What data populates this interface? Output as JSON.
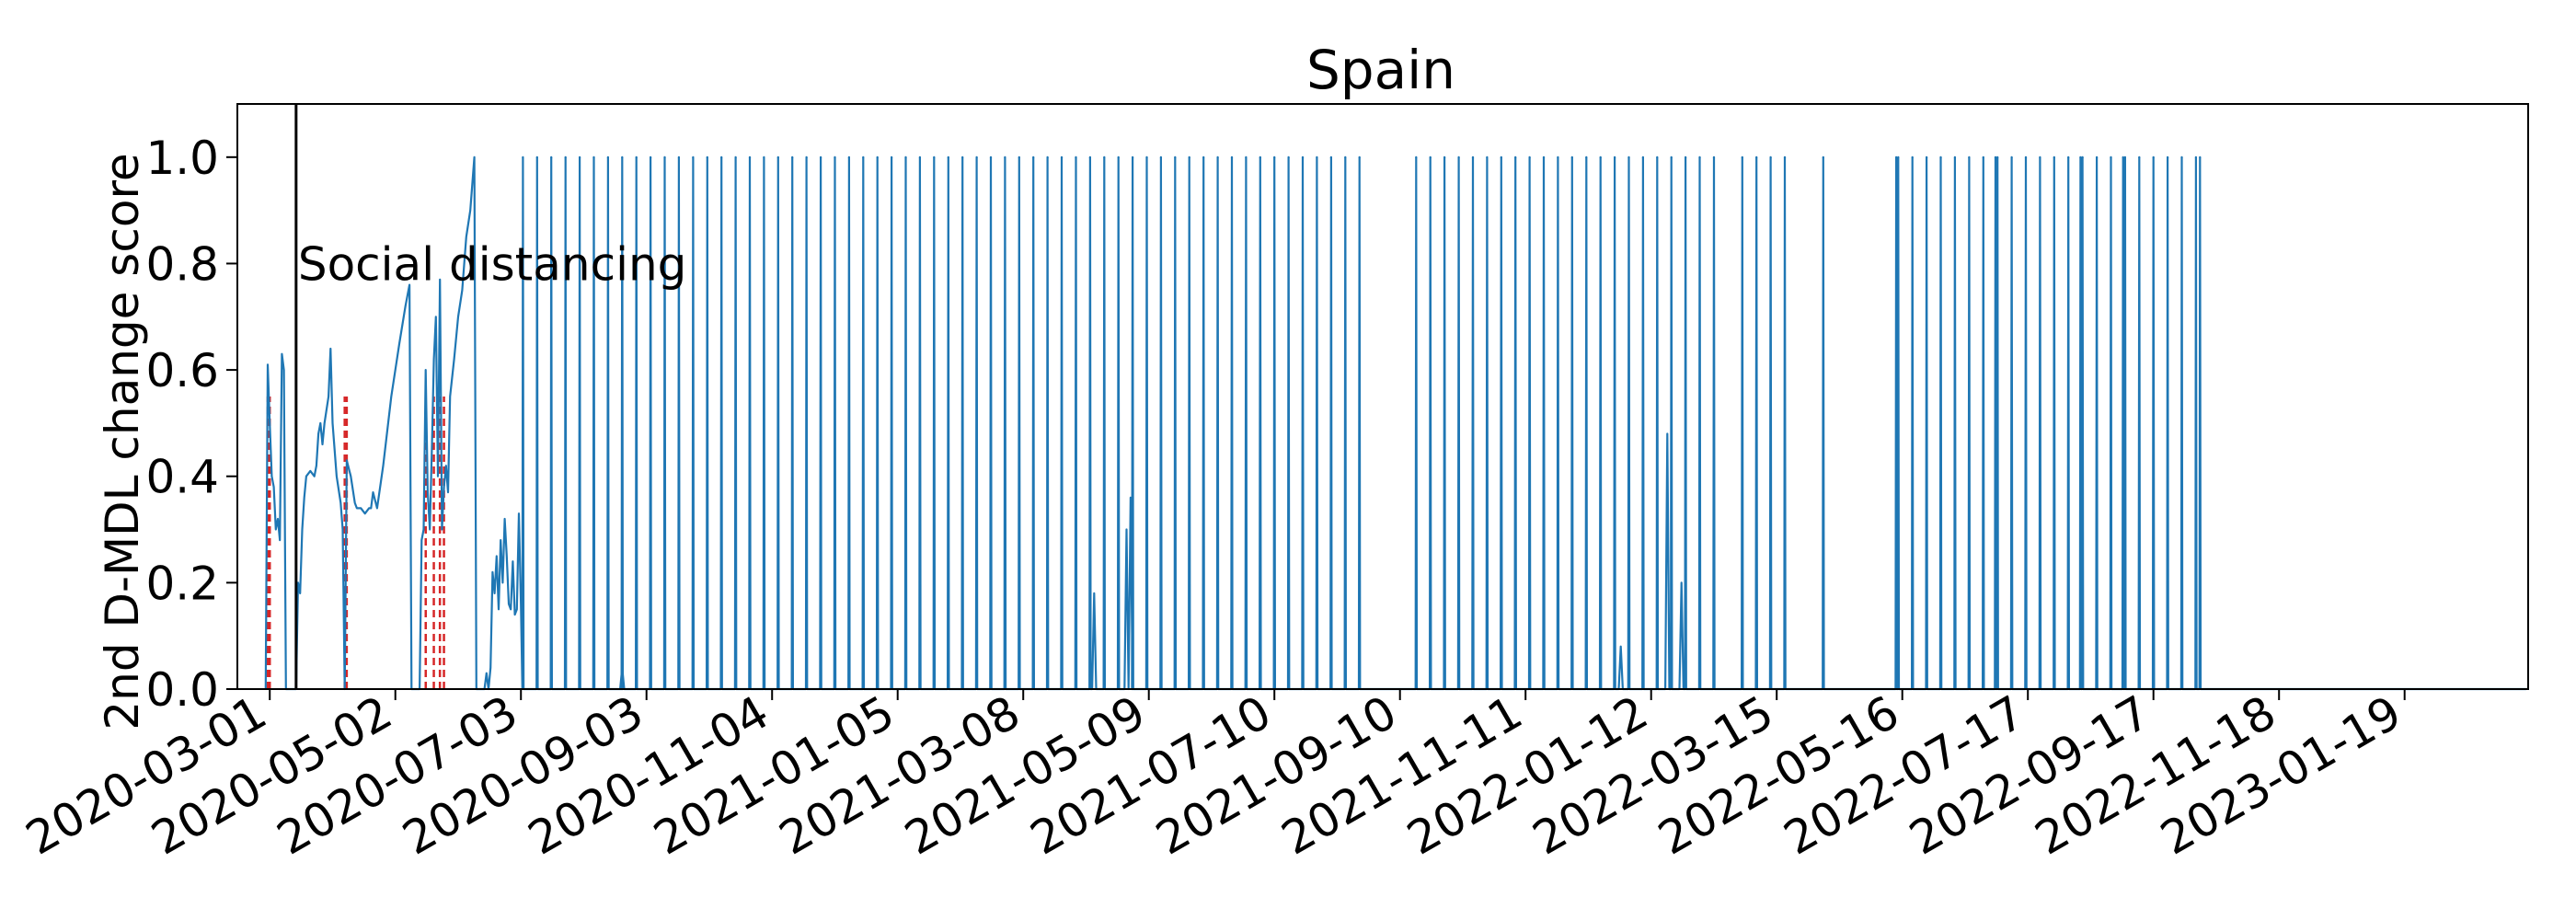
{
  "chart_data": {
    "type": "line",
    "title": "Spain",
    "xlabel": "",
    "ylabel": "2nd D-MDL change score",
    "xlim": [
      "2020-02-14",
      "2023-03-21"
    ],
    "ylim": [
      0.0,
      1.1
    ],
    "yticks": [
      0.0,
      0.2,
      0.4,
      0.6,
      0.8,
      1.0
    ],
    "ytick_labels": [
      "0.0",
      "0.2",
      "0.4",
      "0.6",
      "0.8",
      "1.0"
    ],
    "xticks": [
      "2020-03-01",
      "2020-05-02",
      "2020-07-03",
      "2020-09-03",
      "2020-11-04",
      "2021-01-05",
      "2021-03-08",
      "2021-05-09",
      "2021-07-10",
      "2021-09-10",
      "2021-11-11",
      "2022-01-12",
      "2022-03-15",
      "2022-05-16",
      "2022-07-17",
      "2022-09-17",
      "2022-11-18",
      "2023-01-19"
    ],
    "grid": false,
    "annotation": {
      "label": "Social distancing",
      "date": "2020-03-14",
      "y": 0.8
    },
    "series_early": [
      [
        "2020-02-28",
        0.0
      ],
      [
        "2020-02-29",
        0.61
      ],
      [
        "2020-03-01",
        0.5
      ],
      [
        "2020-03-02",
        0.4
      ],
      [
        "2020-03-03",
        0.38
      ],
      [
        "2020-03-04",
        0.3
      ],
      [
        "2020-03-05",
        0.32
      ],
      [
        "2020-03-06",
        0.28
      ],
      [
        "2020-03-07",
        0.63
      ],
      [
        "2020-03-08",
        0.6
      ],
      [
        "2020-03-09",
        0.0
      ],
      [
        "2020-03-10",
        0.0
      ],
      [
        "2020-03-11",
        0.0
      ],
      [
        "2020-03-12",
        0.0
      ],
      [
        "2020-03-13",
        0.0
      ],
      [
        "2020-03-14",
        0.0
      ],
      [
        "2020-03-15",
        0.2
      ],
      [
        "2020-03-16",
        0.18
      ],
      [
        "2020-03-17",
        0.3
      ],
      [
        "2020-03-18",
        0.36
      ],
      [
        "2020-03-19",
        0.4
      ],
      [
        "2020-03-21",
        0.41
      ],
      [
        "2020-03-23",
        0.4
      ],
      [
        "2020-03-24",
        0.42
      ],
      [
        "2020-03-25",
        0.48
      ],
      [
        "2020-03-26",
        0.5
      ],
      [
        "2020-03-27",
        0.46
      ],
      [
        "2020-03-28",
        0.5
      ],
      [
        "2020-03-30",
        0.55
      ],
      [
        "2020-03-31",
        0.64
      ],
      [
        "2020-04-01",
        0.5
      ],
      [
        "2020-04-03",
        0.4
      ],
      [
        "2020-04-05",
        0.35
      ],
      [
        "2020-04-06",
        0.3
      ],
      [
        "2020-04-07",
        0.0
      ],
      [
        "2020-04-08",
        0.43
      ],
      [
        "2020-04-10",
        0.4
      ],
      [
        "2020-04-12",
        0.35
      ],
      [
        "2020-04-13",
        0.34
      ],
      [
        "2020-04-15",
        0.34
      ],
      [
        "2020-04-17",
        0.33
      ],
      [
        "2020-04-19",
        0.34
      ],
      [
        "2020-04-20",
        0.34
      ],
      [
        "2020-04-21",
        0.37
      ],
      [
        "2020-04-23",
        0.34
      ],
      [
        "2020-04-26",
        0.42
      ],
      [
        "2020-04-30",
        0.55
      ],
      [
        "2020-05-04",
        0.65
      ],
      [
        "2020-05-07",
        0.72
      ],
      [
        "2020-05-09",
        0.76
      ],
      [
        "2020-05-10",
        0.0
      ],
      [
        "2020-05-11",
        0.0
      ],
      [
        "2020-05-14",
        0.0
      ],
      [
        "2020-05-15",
        0.28
      ],
      [
        "2020-05-16",
        0.3
      ],
      [
        "2020-05-17",
        0.6
      ],
      [
        "2020-05-18",
        0.37
      ],
      [
        "2020-05-19",
        0.3
      ],
      [
        "2020-05-20",
        0.45
      ],
      [
        "2020-05-21",
        0.62
      ],
      [
        "2020-05-22",
        0.7
      ],
      [
        "2020-05-23",
        0.4
      ],
      [
        "2020-05-24",
        0.77
      ],
      [
        "2020-05-25",
        0.3
      ],
      [
        "2020-05-26",
        0.38
      ],
      [
        "2020-05-27",
        0.42
      ],
      [
        "2020-05-28",
        0.37
      ],
      [
        "2020-05-29",
        0.55
      ],
      [
        "2020-05-31",
        0.62
      ],
      [
        "2020-06-02",
        0.7
      ],
      [
        "2020-06-04",
        0.75
      ],
      [
        "2020-06-06",
        0.85
      ],
      [
        "2020-06-08",
        0.9
      ],
      [
        "2020-06-10",
        1.0
      ],
      [
        "2020-06-11",
        0.0
      ],
      [
        "2020-06-12",
        0.0
      ],
      [
        "2020-06-13",
        0.0
      ],
      [
        "2020-06-15",
        0.0
      ],
      [
        "2020-06-16",
        0.03
      ],
      [
        "2020-06-17",
        0.0
      ],
      [
        "2020-06-18",
        0.04
      ],
      [
        "2020-06-19",
        0.22
      ],
      [
        "2020-06-20",
        0.18
      ],
      [
        "2020-06-21",
        0.25
      ],
      [
        "2020-06-22",
        0.15
      ],
      [
        "2020-06-23",
        0.28
      ],
      [
        "2020-06-24",
        0.2
      ],
      [
        "2020-06-25",
        0.32
      ],
      [
        "2020-06-26",
        0.25
      ],
      [
        "2020-06-27",
        0.16
      ],
      [
        "2020-06-28",
        0.15
      ],
      [
        "2020-06-29",
        0.24
      ],
      [
        "2020-06-30",
        0.14
      ],
      [
        "2020-07-01",
        0.15
      ],
      [
        "2020-07-02",
        0.33
      ],
      [
        "2020-07-03",
        0.16
      ]
    ],
    "spike_start": "2020-07-04",
    "spike_until": "2022-10-10",
    "spike_interval_days": 7,
    "spike_value": 1.0,
    "spike_gaps": [
      [
        "2021-08-27",
        "2021-09-17"
      ],
      [
        "2022-02-15",
        "2022-02-26"
      ],
      [
        "2022-03-20",
        "2022-05-13"
      ]
    ],
    "spikes_after": [
      "2022-04-07",
      "2022-05-13",
      "2022-06-11",
      "2022-07-01",
      "2022-07-23",
      "2022-08-12",
      "2022-09-02",
      "2022-09-24",
      "2022-10-10"
    ],
    "small_bumps": [
      [
        "2020-08-22",
        0.04
      ],
      [
        "2021-04-12",
        0.18
      ],
      [
        "2021-04-28",
        0.3
      ],
      [
        "2021-04-30",
        0.36
      ],
      [
        "2021-12-28",
        0.08
      ],
      [
        "2022-01-20",
        0.48
      ],
      [
        "2022-01-27",
        0.2
      ]
    ],
    "change_points": [
      "2020-02-29",
      "2020-03-01",
      "2020-04-07",
      "2020-04-08",
      "2020-05-17",
      "2020-05-21",
      "2020-05-24",
      "2020-05-26"
    ],
    "colors": {
      "line": "#1f77b4",
      "change_point": "#d62728",
      "annotation": "#000000"
    }
  }
}
